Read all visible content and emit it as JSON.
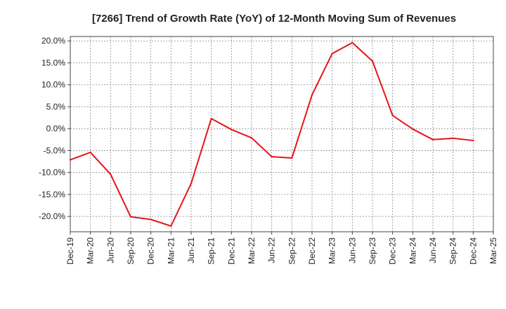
{
  "chart_data": {
    "type": "line",
    "title": "[7266]  Trend of Growth Rate (YoY) of 12-Month Moving Sum of Revenues",
    "xlabel": "",
    "ylabel": "",
    "ylim": [
      -23.5,
      21.0
    ],
    "y_ticks": [
      -20,
      -15,
      -10,
      -5,
      0,
      5,
      10,
      15,
      20
    ],
    "y_tick_labels": [
      "-20.0%",
      "-15.0%",
      "-10.0%",
      "-5.0%",
      "0.0%",
      "5.0%",
      "10.0%",
      "15.0%",
      "20.0%"
    ],
    "x_tick_labels": [
      "Dec-19",
      "Mar-20",
      "Jun-20",
      "Sep-20",
      "Dec-20",
      "Mar-21",
      "Jun-21",
      "Sep-21",
      "Dec-21",
      "Mar-22",
      "Jun-22",
      "Sep-22",
      "Dec-22",
      "Mar-23",
      "Jun-23",
      "Sep-23",
      "Dec-23",
      "Mar-24",
      "Jun-24",
      "Sep-24",
      "Dec-24",
      "Mar-25"
    ],
    "grid": true,
    "series": [
      {
        "color": "#e8141a",
        "x": [
          "Dec-19",
          "Mar-20",
          "Jun-20",
          "Sep-20",
          "Dec-20",
          "Mar-21",
          "Jun-21",
          "Sep-21",
          "Dec-21",
          "Mar-22",
          "Jun-22",
          "Sep-22",
          "Dec-22",
          "Mar-23",
          "Jun-23",
          "Sep-23",
          "Dec-23",
          "Mar-24",
          "Jun-24",
          "Sep-24",
          "Dec-24"
        ],
        "values": [
          -7.1,
          -5.4,
          -10.4,
          -20.1,
          -20.7,
          -22.2,
          -12.5,
          2.3,
          -0.2,
          -2.1,
          -6.4,
          -6.7,
          7.7,
          17.1,
          19.6,
          15.4,
          3.0,
          -0.1,
          -2.5,
          -2.2,
          -2.7
        ]
      }
    ]
  }
}
